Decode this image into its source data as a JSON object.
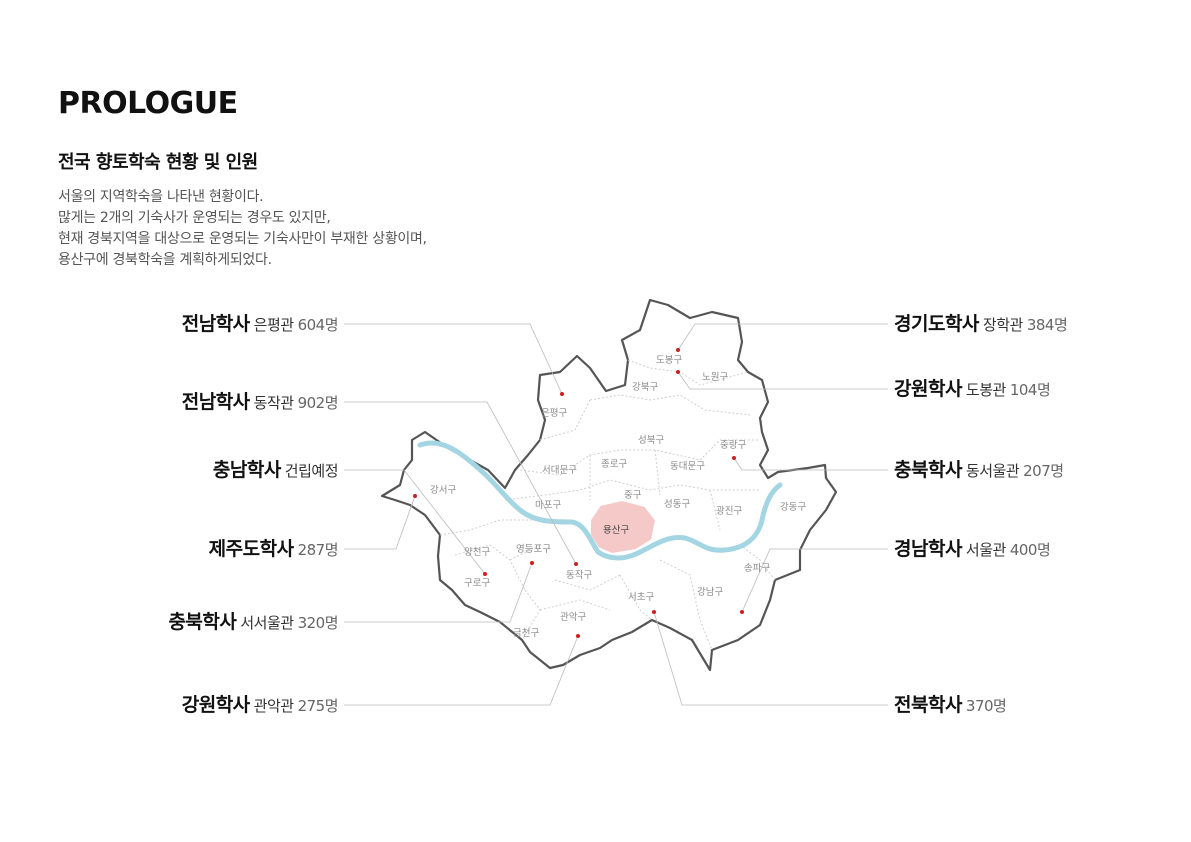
{
  "header": {
    "title": "PROLOGUE",
    "subtitle": "전국 향토학숙 현황 및 인원",
    "description": [
      "서울의 지역학숙을 나타낸 현황이다.",
      "많게는 2개의 기숙사가 운영되는 경우도 있지만,",
      "현재 경북지역을 대상으로 운영되는 기숙사만이 부재한 상황이며,",
      "용산구에 경북학숙을 계획하게되었다."
    ]
  },
  "colors": {
    "river": "#a3d5e3",
    "highlight_district": "#f6c9c9",
    "marker": "#cc1f1f",
    "outline": "#555555",
    "leader_line": "#bbbbbb"
  },
  "map": {
    "highlighted_district": "용산구",
    "districts": [
      "도봉구",
      "노원구",
      "강북구",
      "은평구",
      "성북구",
      "중랑구",
      "서대문구",
      "종로구",
      "동대문구",
      "강서구",
      "마포구",
      "중구",
      "성동구",
      "광진구",
      "강동구",
      "용산구",
      "양천구",
      "영등포구",
      "구로구",
      "동작구",
      "송파구",
      "서초구",
      "강남구",
      "관악구",
      "금천구"
    ]
  },
  "labels": {
    "left": [
      {
        "school": "전남학사",
        "hall": "은평관",
        "count": "604명"
      },
      {
        "school": "전남학사",
        "hall": "동작관",
        "count": "902명"
      },
      {
        "school": "충남학사",
        "hall": "건립예정",
        "count": ""
      },
      {
        "school": "제주도학사",
        "hall": "",
        "count": "287명"
      },
      {
        "school": "충북학사",
        "hall": "서서울관",
        "count": "320명"
      },
      {
        "school": "강원학사",
        "hall": "관악관",
        "count": "275명"
      }
    ],
    "right": [
      {
        "school": "경기도학사",
        "hall": "장학관",
        "count": "384명"
      },
      {
        "school": "강원학사",
        "hall": "도봉관",
        "count": "104명"
      },
      {
        "school": "충북학사",
        "hall": "동서울관",
        "count": "207명"
      },
      {
        "school": "경남학사",
        "hall": "서울관",
        "count": "400명"
      },
      {
        "school": "전북학사",
        "hall": "",
        "count": "370명"
      }
    ]
  }
}
